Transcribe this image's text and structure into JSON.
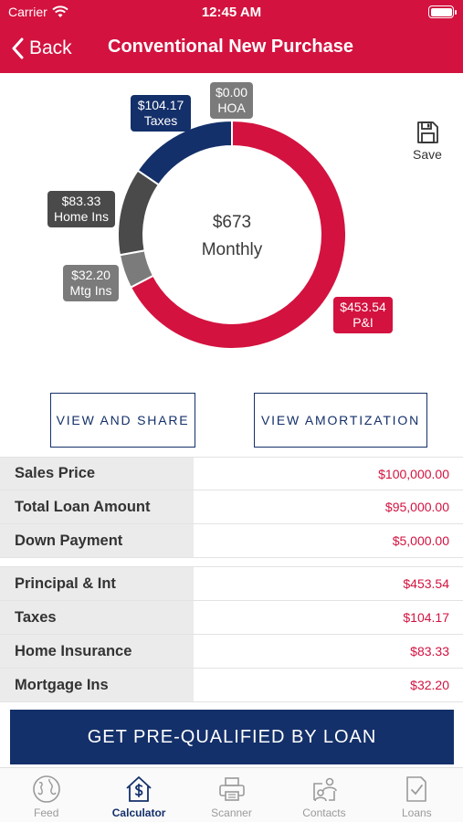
{
  "status_bar": {
    "carrier": "Carrier",
    "time": "12:45 AM"
  },
  "header": {
    "back_label": "Back",
    "title": "Conventional New Purchase"
  },
  "colors": {
    "brand_red": "#d3123f",
    "navy": "#14306a",
    "dark_gray": "#4a4a4a",
    "mid_gray": "#7b7b7b"
  },
  "summary_chart": {
    "center_amount": "$673",
    "center_label": "Monthly",
    "labels": {
      "taxes": {
        "amount": "$104.17",
        "name": "Taxes"
      },
      "hoa": {
        "amount": "$0.00",
        "name": "HOA"
      },
      "home_ins": {
        "amount": "$83.33",
        "name": "Home Ins"
      },
      "mtg_ins": {
        "amount": "$32.20",
        "name": "Mtg Ins"
      },
      "pi": {
        "amount": "$453.54",
        "name": "P&I"
      }
    }
  },
  "chart_data": {
    "type": "pie",
    "style": "donut",
    "categories": [
      "P&I",
      "Mtg Ins",
      "Home Ins",
      "Taxes",
      "HOA"
    ],
    "values": [
      453.54,
      32.2,
      83.33,
      104.17,
      0.0
    ],
    "colors": [
      "#d3123f",
      "#7b7b7b",
      "#4a4a4a",
      "#14306a",
      "#7b7b7b"
    ]
  },
  "save": {
    "label": "Save",
    "icon": "floppy-disk-icon"
  },
  "actions": {
    "view_share": "VIEW AND SHARE",
    "view_amortization": "VIEW AMORTIZATION"
  },
  "loan_rows": [
    {
      "label": "Sales Price",
      "value": "$100,000.00"
    },
    {
      "label": "Total Loan Amount",
      "value": "$95,000.00"
    },
    {
      "label": "Down Payment",
      "value": "$5,000.00"
    }
  ],
  "payment_rows": [
    {
      "label": "Principal & Int",
      "value": "$453.54"
    },
    {
      "label": "Taxes",
      "value": "$104.17"
    },
    {
      "label": "Home Insurance",
      "value": "$83.33"
    },
    {
      "label": "Mortgage Ins",
      "value": "$32.20"
    }
  ],
  "cta": {
    "label": "GET PRE-QUALIFIED BY LOAN"
  },
  "tabs": [
    {
      "label": "Feed",
      "icon": "globe-icon"
    },
    {
      "label": "Calculator",
      "icon": "calculator-house-icon",
      "active": true
    },
    {
      "label": "Scanner",
      "icon": "printer-icon"
    },
    {
      "label": "Contacts",
      "icon": "contacts-icon"
    },
    {
      "label": "Loans",
      "icon": "document-check-icon"
    }
  ]
}
